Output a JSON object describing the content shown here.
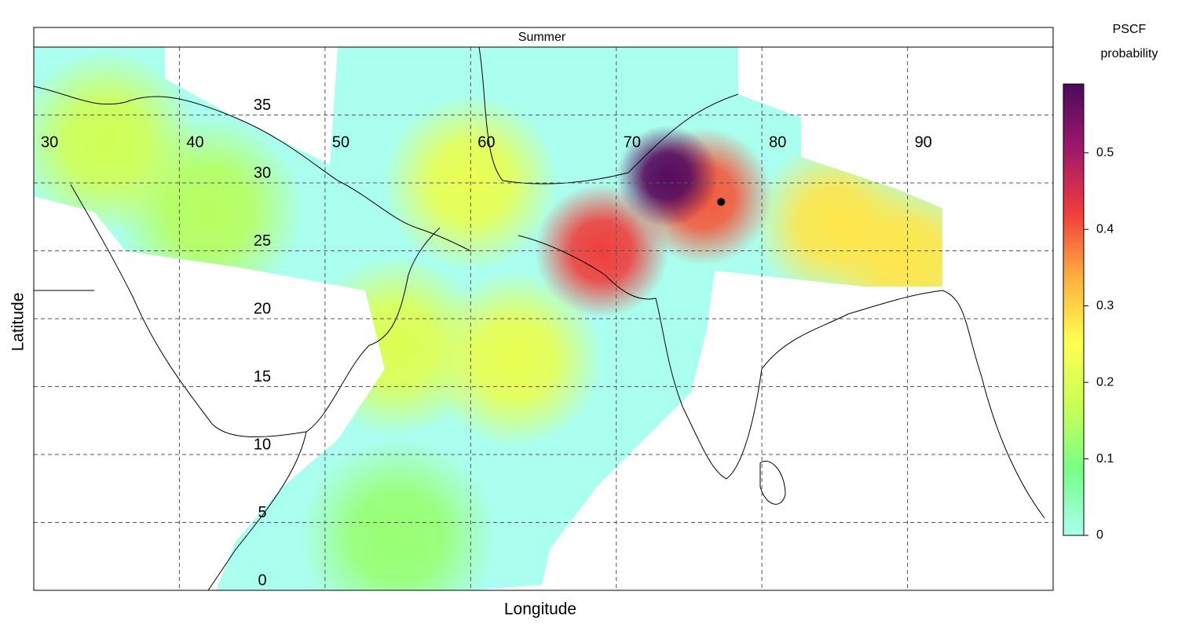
{
  "chart_data": {
    "type": "map",
    "title": "Summer",
    "xlabel": "Longitude",
    "ylabel": "Latitude",
    "colorbar_title": [
      "PSCF",
      "probability"
    ],
    "xlim": [
      30,
      100
    ],
    "ylim": [
      0,
      40
    ],
    "xticks": [
      30,
      40,
      50,
      60,
      70,
      80,
      90
    ],
    "yticks": [
      0,
      5,
      10,
      15,
      20,
      25,
      30,
      35
    ],
    "zlim": [
      0,
      0.59
    ],
    "zticks": [
      0,
      0.1,
      0.2,
      0.3,
      0.4,
      0.5
    ],
    "colors": [
      "#aaffee",
      "#77ff88",
      "#c8ff55",
      "#ffff50",
      "#ffb040",
      "#f03c3c",
      "#a0186a",
      "#4a0a5e"
    ],
    "grid": true,
    "receptor": {
      "lon": 77.2,
      "lat": 28.6
    },
    "hotspots": [
      {
        "lon": 55,
        "lat": 4,
        "value": 0.12
      },
      {
        "lon": 42,
        "lat": 28,
        "value": 0.15
      },
      {
        "lon": 35,
        "lat": 33,
        "value": 0.18
      },
      {
        "lon": 55,
        "lat": 18,
        "value": 0.2
      },
      {
        "lon": 63,
        "lat": 17,
        "value": 0.22
      },
      {
        "lon": 60,
        "lat": 30,
        "value": 0.22
      },
      {
        "lon": 85,
        "lat": 27,
        "value": 0.28
      },
      {
        "lon": 90,
        "lat": 24.5,
        "value": 0.28
      },
      {
        "lon": 76,
        "lat": 29,
        "value": 0.4
      },
      {
        "lon": 69,
        "lat": 25,
        "value": 0.42
      },
      {
        "lon": 73.5,
        "lat": 30.5,
        "value": 0.58
      }
    ]
  }
}
